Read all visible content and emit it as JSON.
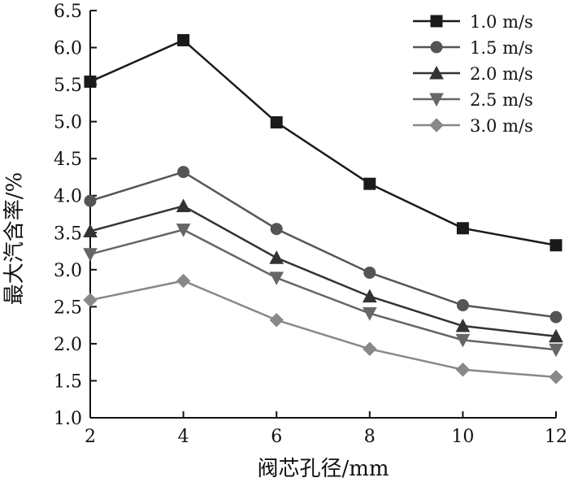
{
  "chart_data": {
    "type": "line",
    "x": [
      2,
      4,
      6,
      8,
      10,
      12
    ],
    "xlabel": "阀芯孔径/mm",
    "ylabel": "最大汽含率/%",
    "xlim": [
      2,
      12
    ],
    "ylim": [
      1.0,
      6.5
    ],
    "xticks": [
      "2",
      "4",
      "6",
      "8",
      "10",
      "12"
    ],
    "yticks": [
      "1.0",
      "1.5",
      "2.0",
      "2.5",
      "3.0",
      "3.5",
      "4.0",
      "4.5",
      "5.0",
      "5.5",
      "6.0",
      "6.5"
    ],
    "grid": false,
    "legend_position": "top-right",
    "series": [
      {
        "name": "1.0 m/s",
        "marker": "square",
        "color": "#1a1a1a",
        "values": [
          5.54,
          6.1,
          4.99,
          4.16,
          3.56,
          3.33
        ]
      },
      {
        "name": "1.5 m/s",
        "marker": "circle",
        "color": "#555555",
        "values": [
          3.93,
          4.32,
          3.55,
          2.96,
          2.52,
          2.36
        ]
      },
      {
        "name": "2.0 m/s",
        "marker": "triangle-up",
        "color": "#333333",
        "values": [
          3.52,
          3.86,
          3.16,
          2.64,
          2.24,
          2.1
        ]
      },
      {
        "name": "2.5 m/s",
        "marker": "triangle-down",
        "color": "#666666",
        "values": [
          3.21,
          3.54,
          2.89,
          2.41,
          2.05,
          1.92
        ]
      },
      {
        "name": "3.0 m/s",
        "marker": "diamond",
        "color": "#888888",
        "values": [
          2.59,
          2.85,
          2.32,
          1.93,
          1.65,
          1.55
        ]
      }
    ]
  }
}
